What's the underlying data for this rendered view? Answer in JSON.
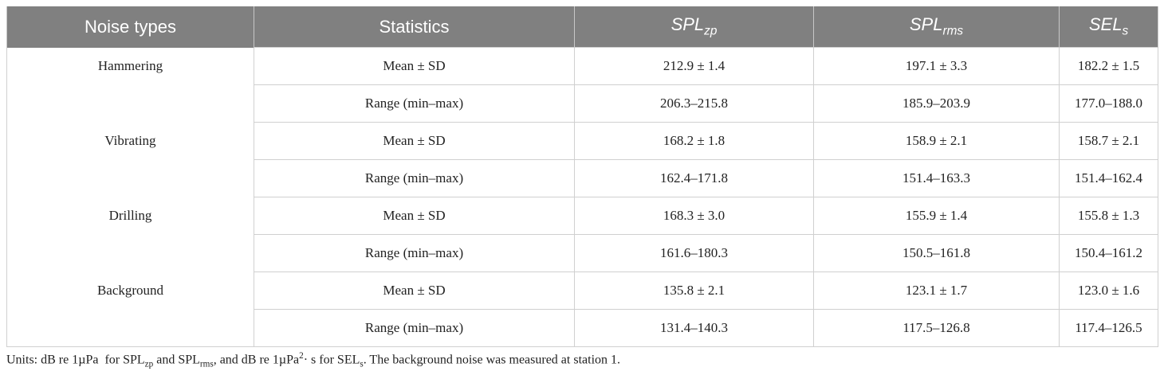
{
  "table": {
    "header": [
      "Noise types",
      "Statistics",
      {
        "main": "SPL",
        "sub": "zp"
      },
      {
        "main": "SPL",
        "sub": "rms"
      },
      {
        "main": "SEL",
        "sub": "s"
      }
    ],
    "rows": [
      [
        "Hammering",
        "Mean ± SD",
        "212.9 ± 1.4",
        "197.1 ± 3.3",
        "182.2 ± 1.5"
      ],
      [
        null,
        "Range (min–max)",
        "206.3–215.8",
        "185.9–203.9",
        "177.0–188.0"
      ],
      [
        "Vibrating",
        "Mean ± SD",
        "168.2 ± 1.8",
        "158.9 ± 2.1",
        "158.7 ± 2.1"
      ],
      [
        null,
        "Range (min–max)",
        "162.4–171.8",
        "151.4–163.3",
        "151.4–162.4"
      ],
      [
        "Drilling",
        "Mean ± SD",
        "168.3 ± 3.0",
        "155.9 ± 1.4",
        "155.8 ± 1.3"
      ],
      [
        null,
        "Range (min–max)",
        "161.6–180.3",
        "150.5–161.8",
        "150.4–161.2"
      ],
      [
        "Background",
        "Mean ± SD",
        "135.8 ± 2.1",
        "123.1 ± 1.7",
        "123.0 ± 1.6"
      ],
      [
        null,
        "Range (min–max)",
        "131.4–140.3",
        "117.5–126.8",
        "117.4–126.5"
      ]
    ]
  },
  "footnote": [
    "Units: dB re 1µPa  for SPL",
    "zp",
    " and SPL",
    "rms",
    ", and dB re 1µPa",
    "2",
    "· s for SEL",
    "s",
    ". The background noise was measured at station 1."
  ]
}
